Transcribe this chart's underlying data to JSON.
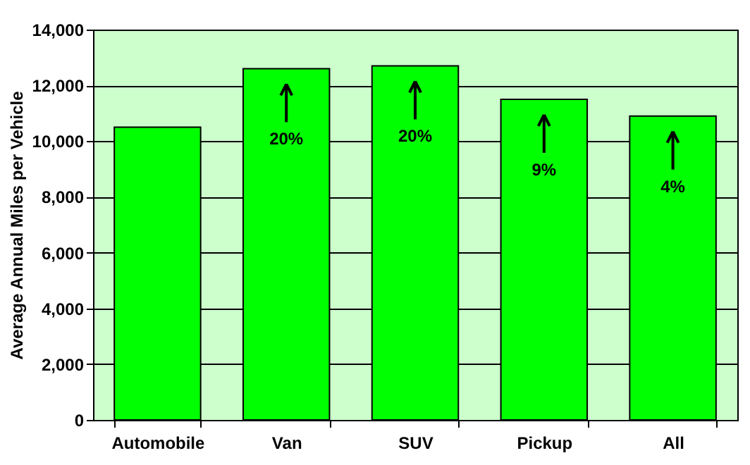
{
  "chart_data": {
    "type": "bar",
    "ylabel": "Average Annual Miles per Vehicle",
    "categories": [
      "Automobile",
      "Van",
      "SUV",
      "Pickup",
      "All"
    ],
    "values": [
      10500,
      12600,
      12700,
      11500,
      10900
    ],
    "color": "#00ff00",
    "ylim": [
      0,
      14000
    ],
    "yticks": [
      0,
      {
        "value": 2000,
        "label": "2,000"
      },
      {
        "value": 4000,
        "label": "4,000"
      },
      {
        "value": 6000,
        "label": "6,000"
      },
      {
        "value": 8000,
        "label": "8,000"
      },
      {
        "value": 10000,
        "label": "10,000"
      },
      {
        "value": 12000,
        "label": "12,000"
      },
      {
        "value": 14000,
        "label": "14,000"
      }
    ],
    "grid": "y",
    "annotations": [
      {
        "text": "20%",
        "x": "Van"
      },
      {
        "text": "20%",
        "x": "SUV"
      },
      {
        "text": "9%",
        "x": "Pickup"
      },
      {
        "text": "4%",
        "x": "All"
      }
    ]
  }
}
